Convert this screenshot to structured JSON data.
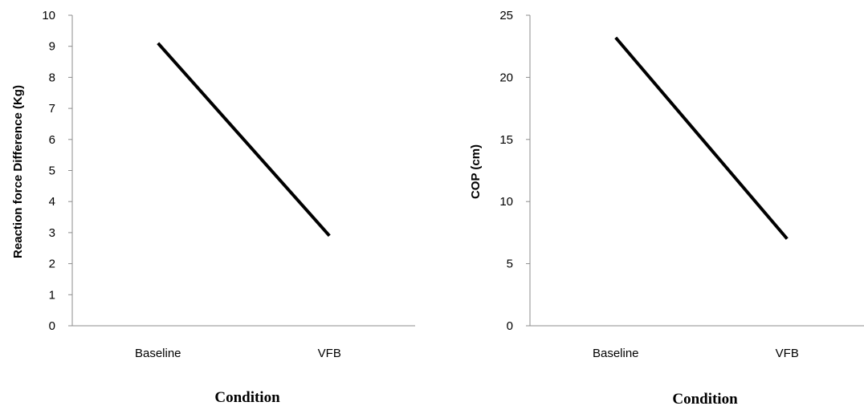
{
  "chart_data": [
    {
      "type": "line",
      "categories": [
        "Baseline",
        "VFB"
      ],
      "values": [
        9.1,
        2.9
      ],
      "xlabel": "Condition",
      "ylabel": "Reaction force Difference (Kg)",
      "ylim": [
        0,
        10
      ],
      "yticks": [
        0,
        1,
        2,
        3,
        4,
        5,
        6,
        7,
        8,
        9,
        10
      ],
      "grid": false,
      "legend": "none",
      "line_color": "#000000"
    },
    {
      "type": "line",
      "categories": [
        "Baseline",
        "VFB"
      ],
      "values": [
        23.2,
        7.0
      ],
      "xlabel": "Condition",
      "ylabel": "COP (cm)",
      "ylim": [
        0,
        25
      ],
      "yticks": [
        0,
        5,
        10,
        15,
        20,
        25
      ],
      "grid": false,
      "legend": "none",
      "line_color": "#000000"
    }
  ]
}
